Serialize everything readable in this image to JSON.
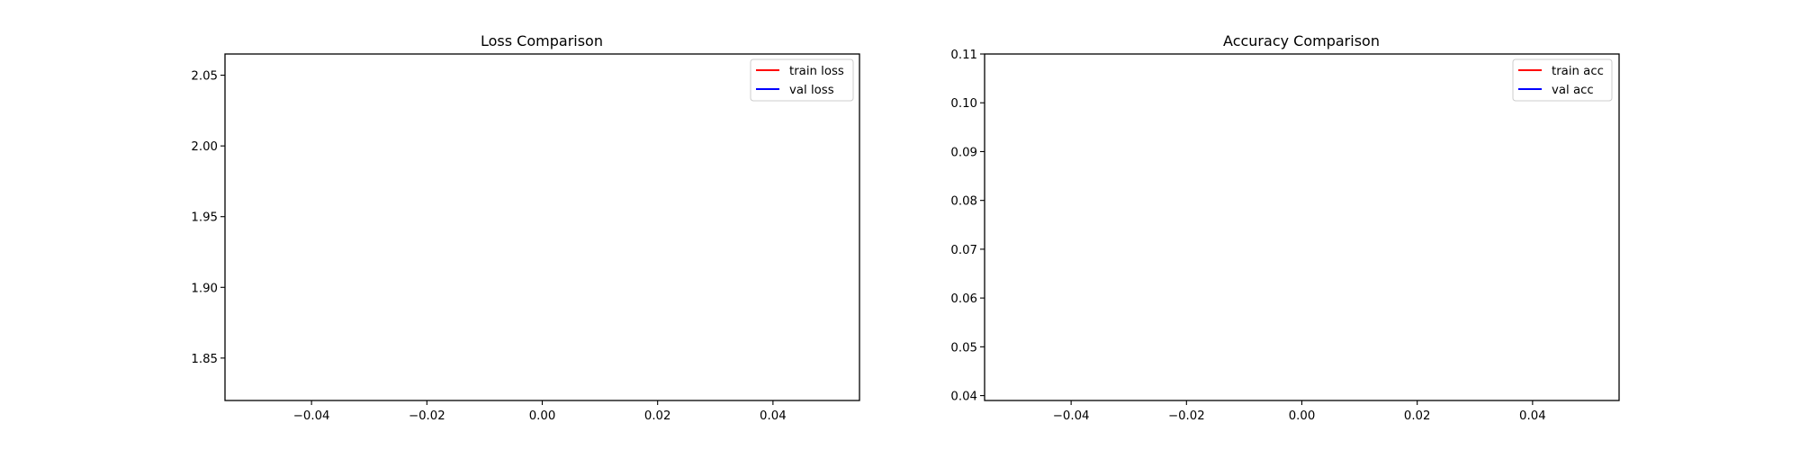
{
  "chart_data": [
    {
      "type": "line",
      "title": "Loss Comparison",
      "xlabel": "",
      "ylabel": "",
      "xlim": [
        -0.055,
        0.055
      ],
      "ylim": [
        1.82,
        2.065
      ],
      "x_ticks": [
        "−0.04",
        "−0.02",
        "0.00",
        "0.02",
        "0.04"
      ],
      "x_tick_values": [
        -0.04,
        -0.02,
        0.0,
        0.02,
        0.04
      ],
      "y_ticks": [
        "1.85",
        "1.90",
        "1.95",
        "2.00",
        "2.05"
      ],
      "y_tick_values": [
        1.85,
        1.9,
        1.95,
        2.0,
        2.05
      ],
      "grid": false,
      "legend_position": "top-right",
      "series": [
        {
          "name": "train loss",
          "color": "#ff0000",
          "x": [],
          "y": []
        },
        {
          "name": "val loss",
          "color": "#0000ff",
          "x": [],
          "y": []
        }
      ]
    },
    {
      "type": "line",
      "title": "Accuracy Comparison",
      "xlabel": "",
      "ylabel": "",
      "xlim": [
        -0.055,
        0.055
      ],
      "ylim": [
        0.039,
        0.11
      ],
      "x_ticks": [
        "−0.04",
        "−0.02",
        "0.00",
        "0.02",
        "0.04"
      ],
      "x_tick_values": [
        -0.04,
        -0.02,
        0.0,
        0.02,
        0.04
      ],
      "y_ticks": [
        "0.04",
        "0.05",
        "0.06",
        "0.07",
        "0.08",
        "0.09",
        "0.10",
        "0.11"
      ],
      "y_tick_values": [
        0.04,
        0.05,
        0.06,
        0.07,
        0.08,
        0.09,
        0.1,
        0.11
      ],
      "grid": false,
      "legend_position": "top-right",
      "series": [
        {
          "name": "train acc",
          "color": "#ff0000",
          "x": [],
          "y": []
        },
        {
          "name": "val acc",
          "color": "#0000ff",
          "x": [],
          "y": []
        }
      ]
    }
  ]
}
